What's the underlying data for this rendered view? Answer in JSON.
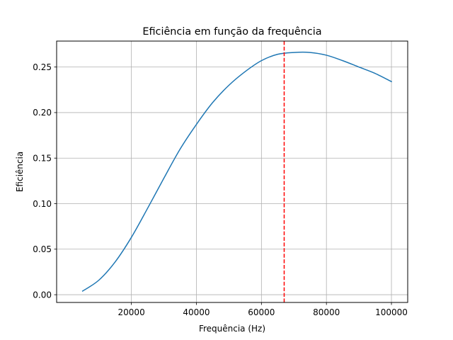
{
  "chart_data": {
    "type": "line",
    "title": "Eficiência em função da frequência",
    "xlabel": "Frequência (Hz)",
    "ylabel": "Eficiência",
    "xlim": [
      -3000,
      105000
    ],
    "ylim": [
      -0.0085,
      0.2785
    ],
    "xticks": [
      20000,
      40000,
      60000,
      80000,
      100000
    ],
    "xtick_labels": [
      "20000",
      "40000",
      "60000",
      "80000",
      "100000"
    ],
    "yticks": [
      0.0,
      0.05,
      0.1,
      0.15,
      0.2,
      0.25
    ],
    "ytick_labels": [
      "0.00",
      "0.05",
      "0.10",
      "0.15",
      "0.20",
      "0.25"
    ],
    "grid": true,
    "series": [
      {
        "color": "#1f77b4",
        "x": [
          5000,
          10000,
          15000,
          20000,
          25000,
          30000,
          35000,
          40000,
          45000,
          50000,
          55000,
          60000,
          65000,
          70000,
          75000,
          80000,
          85000,
          90000,
          95000,
          100000
        ],
        "y": [
          0.004,
          0.016,
          0.036,
          0.063,
          0.095,
          0.128,
          0.16,
          0.187,
          0.211,
          0.23,
          0.245,
          0.257,
          0.264,
          0.266,
          0.266,
          0.263,
          0.257,
          0.25,
          0.243,
          0.234
        ]
      }
    ],
    "vline": {
      "x": 67000,
      "color": "#ff0000",
      "style": "dashed"
    }
  }
}
